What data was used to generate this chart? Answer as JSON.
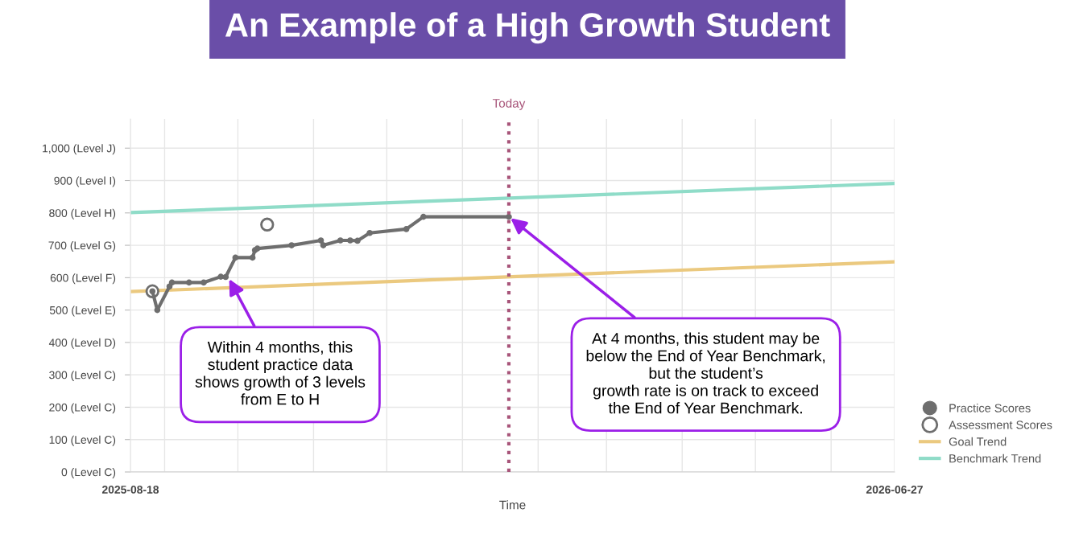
{
  "chart_data": {
    "type": "line",
    "title": "An Example of a High Growth Student",
    "xlabel": "Time",
    "xlim": [
      "2025-08-18",
      "2026-06-27"
    ],
    "xticks": [
      {
        "value": "2025-08-18",
        "label": "2025-08-18"
      },
      {
        "value": "2025-09-01",
        "label": null
      },
      {
        "value": "2025-10-01",
        "label": null
      },
      {
        "value": "2025-11-01",
        "label": null
      },
      {
        "value": "2025-12-01",
        "label": null
      },
      {
        "value": "2026-01-01",
        "label": null
      },
      {
        "value": "2026-02-01",
        "label": null
      },
      {
        "value": "2026-03-01",
        "label": null
      },
      {
        "value": "2026-04-01",
        "label": null
      },
      {
        "value": "2026-05-01",
        "label": null
      },
      {
        "value": "2026-06-01",
        "label": null
      },
      {
        "value": "2026-06-27",
        "label": "2026-06-27"
      }
    ],
    "ylim": [
      0,
      1090
    ],
    "yticks": [
      {
        "value": 0,
        "label": "0 (Level C)"
      },
      {
        "value": 100,
        "label": "100 (Level C)"
      },
      {
        "value": 200,
        "label": "200 (Level C)"
      },
      {
        "value": 300,
        "label": "300 (Level C)"
      },
      {
        "value": 400,
        "label": "400 (Level D)"
      },
      {
        "value": 500,
        "label": "500 (Level E)"
      },
      {
        "value": 600,
        "label": "600 (Level F)"
      },
      {
        "value": 700,
        "label": "700 (Level G)"
      },
      {
        "value": 800,
        "label": "800 (Level H)"
      },
      {
        "value": 900,
        "label": "900 (Level I)"
      },
      {
        "value": 1000,
        "label": "1,000 (Level J)"
      }
    ],
    "grid": true,
    "legend": "bottom right",
    "series": [
      {
        "name": "Practice Scores",
        "color": "#6e6e6e",
        "marker": "circle",
        "x": [
          "2025-08-27",
          "2025-08-29",
          "2025-09-03",
          "2025-09-04",
          "2025-09-11",
          "2025-09-17",
          "2025-09-24",
          "2025-09-26",
          "2025-09-30",
          "2025-10-07",
          "2025-10-08",
          "2025-10-09",
          "2025-10-23",
          "2025-11-04",
          "2025-11-05",
          "2025-11-12",
          "2025-11-16",
          "2025-11-19",
          "2025-11-24",
          "2025-12-09",
          "2025-12-16",
          "2026-01-20"
        ],
        "values": [
          558,
          500,
          573,
          585,
          585,
          585,
          603,
          602,
          662,
          662,
          685,
          690,
          700,
          715,
          700,
          715,
          715,
          714,
          738,
          750,
          788,
          788
        ]
      },
      {
        "name": "Assessment Scores",
        "type": "scatter",
        "color": "#6e6e6e",
        "marker": "circle",
        "x": [
          "2025-08-27",
          "2025-10-13"
        ],
        "values": [
          558,
          764
        ]
      },
      {
        "name": "Goal Trend",
        "type": "line",
        "color": "#ebc97f",
        "marker": "none",
        "x": [
          "2025-08-18",
          "2026-06-27"
        ],
        "values": [
          557,
          649
        ]
      },
      {
        "name": "Benchmark Trend",
        "type": "line",
        "color": "#8fdcc8",
        "marker": "none",
        "x": [
          "2025-08-18",
          "2026-06-27"
        ],
        "values": [
          801,
          891
        ]
      }
    ],
    "ref_lines": [
      {
        "axis": "x",
        "value": "2026-01-20",
        "label": "Today",
        "color": "#a8557a",
        "line_style": "dotted"
      }
    ],
    "annotations": [
      {
        "text": "Within 4 months, this\nstudent practice data\nshows growth of 3 levels\nfrom E to H",
        "x": "2025-09-27",
        "y": 602
      },
      {
        "text": "At 4 months, this student may be\nbelow the End of Year Benchmark,\nbut the student’s\ngrowth rate is on track to exceed\nthe End of Year Benchmark.",
        "x": "2026-01-20",
        "y": 788
      }
    ]
  }
}
